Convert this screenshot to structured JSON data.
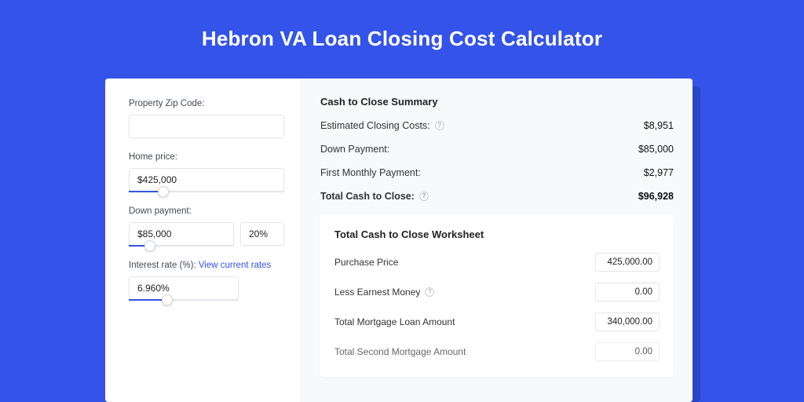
{
  "colors": {
    "page_bg": "#3453e8",
    "card_bg": "#ffffff",
    "card_shadow": "#2a46c8",
    "right_bg": "#f8f9fb",
    "accent": "#3453e8",
    "border": "#e3e6ea",
    "text": "#222222",
    "muted": "#444a53",
    "help_border": "#c9cdd4"
  },
  "title": "Hebron VA Loan Closing Cost Calculator",
  "left": {
    "zip": {
      "label": "Property Zip Code:",
      "value": ""
    },
    "home_price": {
      "label": "Home price:",
      "value": "$425,000",
      "slider_percent": 22
    },
    "down_payment": {
      "label": "Down payment:",
      "value": "$85,000",
      "pct": "20%",
      "slider_percent": 20
    },
    "interest_rate": {
      "label": "Interest rate (%):",
      "link": "View current rates",
      "value": "6.960%",
      "slider_percent": 35
    }
  },
  "summary": {
    "title": "Cash to Close Summary",
    "rows": [
      {
        "label": "Estimated Closing Costs:",
        "value": "$8,951",
        "help": true
      },
      {
        "label": "Down Payment:",
        "value": "$85,000",
        "help": false
      },
      {
        "label": "First Monthly Payment:",
        "value": "$2,977",
        "help": false
      }
    ],
    "total": {
      "label": "Total Cash to Close:",
      "value": "$96,928",
      "help": true
    }
  },
  "worksheet": {
    "title": "Total Cash to Close Worksheet",
    "rows": [
      {
        "label": "Purchase Price",
        "value": "425,000.00",
        "help": false
      },
      {
        "label": "Less Earnest Money",
        "value": "0.00",
        "help": true
      },
      {
        "label": "Total Mortgage Loan Amount",
        "value": "340,000.00",
        "help": false
      },
      {
        "label": "Total Second Mortgage Amount",
        "value": "0.00",
        "help": false
      }
    ]
  }
}
